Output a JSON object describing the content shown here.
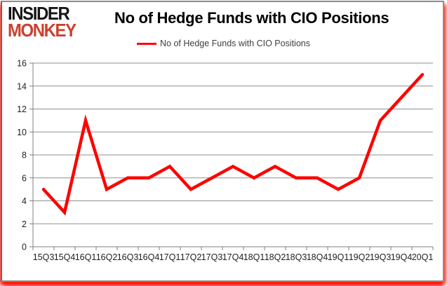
{
  "logo": {
    "line1": "INSIDER",
    "line2": "MONKEY"
  },
  "header": {
    "title": "No of Hedge Funds with CIO Positions"
  },
  "legend": {
    "label": "No of Hedge Funds with CIO Positions"
  },
  "chart_data": {
    "type": "line",
    "title": "No of Hedge Funds with CIO Positions",
    "legend": "No of Hedge Funds with CIO Positions",
    "legend_position": "top",
    "categories": [
      "15Q3",
      "15Q4",
      "16Q1",
      "16Q2",
      "16Q3",
      "16Q4",
      "17Q1",
      "17Q2",
      "17Q3",
      "17Q4",
      "18Q1",
      "18Q2",
      "18Q3",
      "18Q4",
      "19Q1",
      "19Q2",
      "19Q3",
      "19Q4",
      "20Q1"
    ],
    "values": [
      5,
      3,
      11,
      5,
      6,
      6,
      7,
      5,
      6,
      7,
      6,
      7,
      6,
      6,
      5,
      6,
      11,
      13,
      15
    ],
    "xlabel": "",
    "ylabel": "",
    "ylim": [
      0,
      16
    ],
    "ytick_step": 2,
    "grid": true,
    "line_color": "#ff0000",
    "grid_color": "#8f8f8f",
    "axis_color": "#7f7f7f",
    "tick_label_color": "#1f1f1f",
    "brand_red": "#c9412f"
  }
}
